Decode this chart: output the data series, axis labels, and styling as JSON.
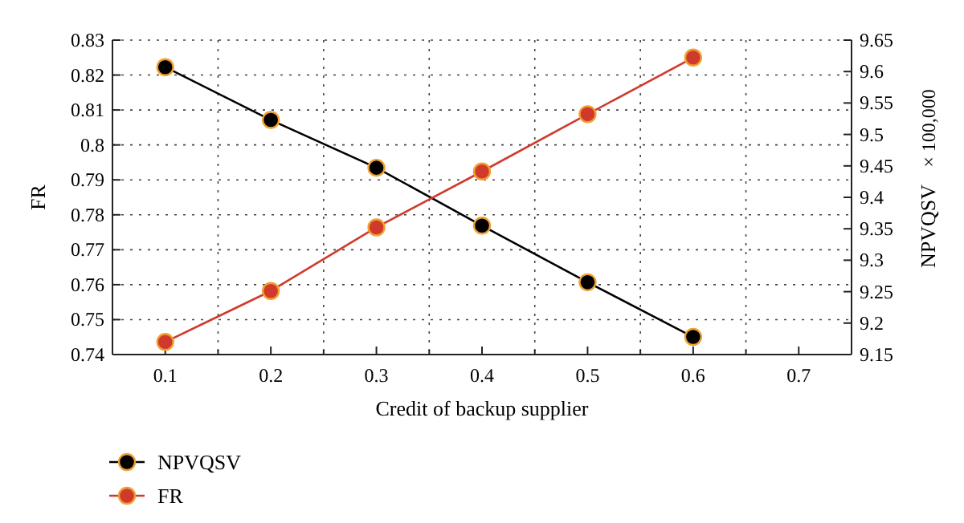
{
  "chart_data": {
    "type": "line",
    "xlabel": "Credit of backup supplier",
    "ylabel": "FR",
    "y2label": "NPVQSV",
    "annotations": [
      "× 100,000"
    ],
    "x": [
      0.1,
      0.2,
      0.3,
      0.4,
      0.5,
      0.6
    ],
    "series": [
      {
        "name": "NPVQSV",
        "color": "#000000",
        "axis": "y2",
        "values": [
          9.607,
          9.523,
          9.447,
          9.355,
          9.265,
          9.178
        ]
      },
      {
        "name": "FR",
        "color": "#d03a2c",
        "values": [
          0.7436,
          0.7582,
          0.7764,
          0.7924,
          0.8088,
          0.825
        ]
      }
    ],
    "xlim": [
      0.05,
      0.75
    ],
    "xticks": [
      0.1,
      {
        "value": 0.15,
        "label": null
      },
      0.2,
      {
        "value": 0.25,
        "label": null
      },
      0.3,
      {
        "value": 0.35,
        "label": null
      },
      0.4,
      {
        "value": 0.45,
        "label": null
      },
      0.5,
      {
        "value": 0.55,
        "label": null
      },
      0.6,
      {
        "value": 0.65,
        "label": null
      },
      0.7
    ],
    "ylim": [
      0.74,
      0.83
    ],
    "yticks": [
      0.74,
      0.75,
      0.76,
      0.77,
      0.78,
      0.79,
      0.8,
      0.81,
      0.82,
      0.83
    ],
    "y2lim": [
      9.15,
      9.65
    ],
    "y2ticks": [
      9.15,
      9.2,
      9.25,
      9.3,
      9.35,
      9.4,
      9.45,
      9.5,
      9.55,
      9.6,
      9.65
    ],
    "grid": true,
    "legend": "bottom left",
    "marker": "circle",
    "line_style": "solid"
  }
}
